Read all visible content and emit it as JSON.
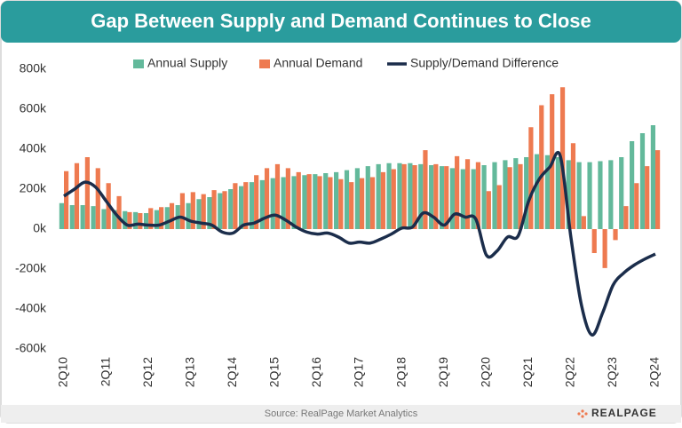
{
  "chart_data": {
    "type": "bar",
    "title": "Gap Between Supply and Demand Continues to Close",
    "source": "Source: RealPage Market Analytics",
    "logo": "REALPAGE",
    "categories": [
      "2Q10",
      null,
      null,
      null,
      "2Q11",
      null,
      null,
      null,
      "2Q12",
      null,
      null,
      null,
      "2Q13",
      null,
      null,
      null,
      "2Q14",
      null,
      null,
      null,
      "2Q15",
      null,
      null,
      null,
      "2Q16",
      null,
      null,
      null,
      "2Q17",
      null,
      null,
      null,
      "2Q18",
      null,
      null,
      null,
      "2Q19",
      null,
      null,
      null,
      "2Q20",
      null,
      null,
      null,
      "2Q21",
      null,
      null,
      null,
      "2Q22",
      null,
      null,
      null,
      "2Q23",
      null,
      null,
      null,
      "2Q24"
    ],
    "series": [
      {
        "name": "Annual Supply",
        "type": "bar",
        "color": "#63b99b",
        "values": [
          130,
          120,
          120,
          115,
          100,
          95,
          90,
          85,
          80,
          95,
          110,
          120,
          130,
          150,
          160,
          180,
          200,
          215,
          235,
          245,
          255,
          260,
          265,
          270,
          275,
          280,
          285,
          295,
          305,
          315,
          325,
          330,
          330,
          330,
          325,
          320,
          315,
          305,
          300,
          300,
          320,
          335,
          345,
          355,
          360,
          375,
          370,
          360,
          345,
          335,
          335,
          340,
          345,
          360,
          440,
          480,
          520
        ]
      },
      {
        "name": "Annual Demand",
        "type": "bar",
        "color": "#ee7a50",
        "values": [
          290,
          330,
          360,
          305,
          230,
          165,
          85,
          80,
          105,
          110,
          130,
          180,
          185,
          175,
          195,
          190,
          230,
          235,
          270,
          305,
          325,
          305,
          285,
          275,
          265,
          260,
          250,
          235,
          255,
          260,
          285,
          300,
          325,
          320,
          395,
          325,
          315,
          365,
          350,
          335,
          190,
          220,
          310,
          325,
          510,
          620,
          675,
          710,
          430,
          65,
          -120,
          -195,
          -55,
          115,
          230,
          315,
          395
        ]
      },
      {
        "name": "Supply/Demand Difference",
        "type": "line",
        "color": "#1b2d4b",
        "values": [
          165,
          200,
          235,
          210,
          140,
          70,
          20,
          25,
          20,
          20,
          40,
          60,
          40,
          30,
          20,
          -15,
          -20,
          20,
          30,
          55,
          70,
          45,
          10,
          -15,
          -25,
          -20,
          -40,
          -70,
          -65,
          -70,
          -50,
          -25,
          5,
          10,
          80,
          60,
          20,
          75,
          60,
          50,
          -130,
          -110,
          -40,
          -35,
          140,
          250,
          310,
          365,
          -40,
          -380,
          -530,
          -420,
          -280,
          -220,
          -180,
          -150,
          -125
        ]
      }
    ],
    "ylim": [
      -600,
      800
    ],
    "yticks": [
      {
        "value": -600,
        "label": "-600k"
      },
      {
        "value": -400,
        "label": "-400k"
      },
      {
        "value": -200,
        "label": "-200k"
      },
      {
        "value": 0,
        "label": "0k"
      },
      {
        "value": 200,
        "label": "200k"
      },
      {
        "value": 400,
        "label": "400k"
      },
      {
        "value": 600,
        "label": "600k"
      },
      {
        "value": 800,
        "label": "800k"
      }
    ],
    "grid": false
  }
}
